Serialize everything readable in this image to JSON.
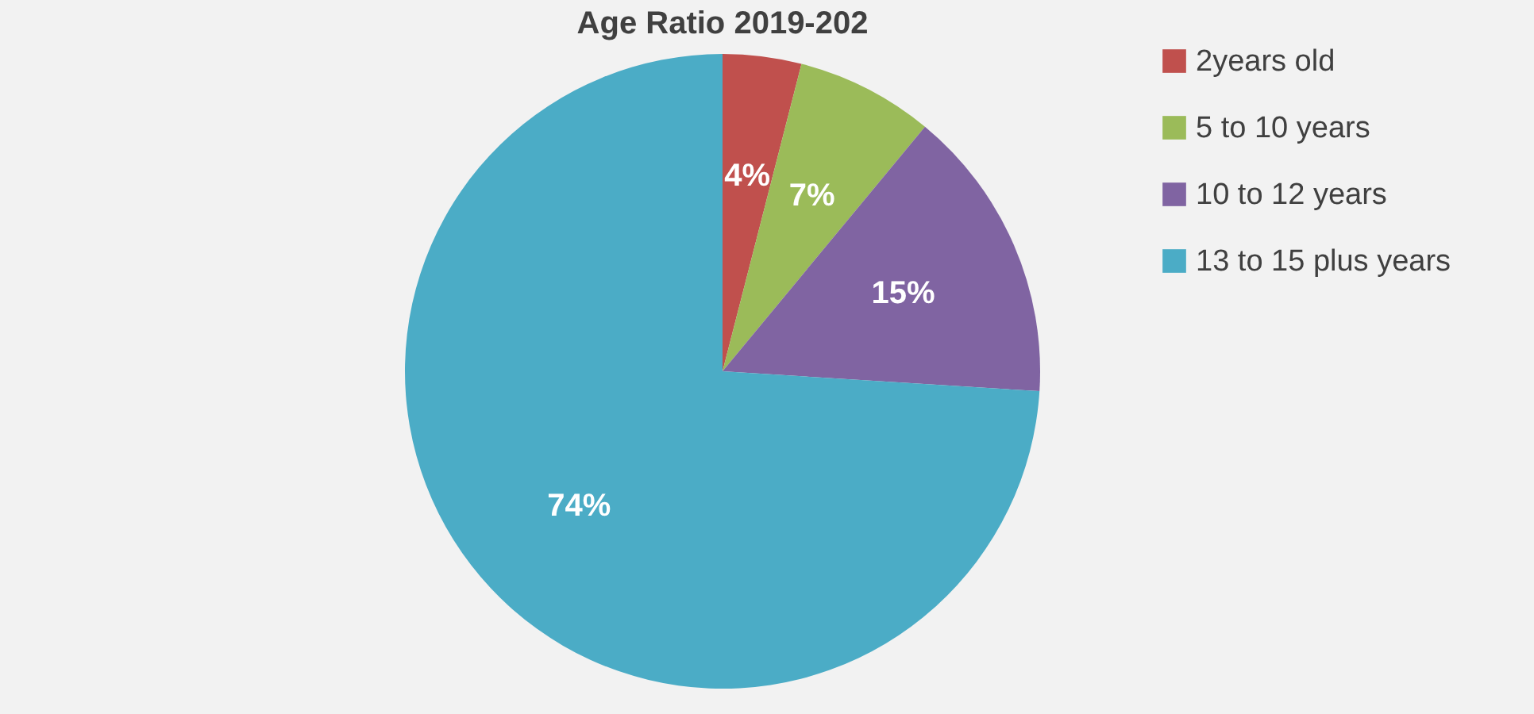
{
  "chart_data": {
    "type": "pie",
    "title": "Age Ratio 2019-202",
    "categories": [
      "2years old",
      "5 to 10 years",
      "10 to 12 years",
      "13 to 15 plus years"
    ],
    "values": [
      4,
      7,
      15,
      74
    ],
    "colors": [
      "#c0504d",
      "#9bbb59",
      "#8064a2",
      "#4bacc6"
    ],
    "value_labels": [
      "4%",
      "7%",
      "15%",
      "74%"
    ],
    "legend": "right"
  }
}
